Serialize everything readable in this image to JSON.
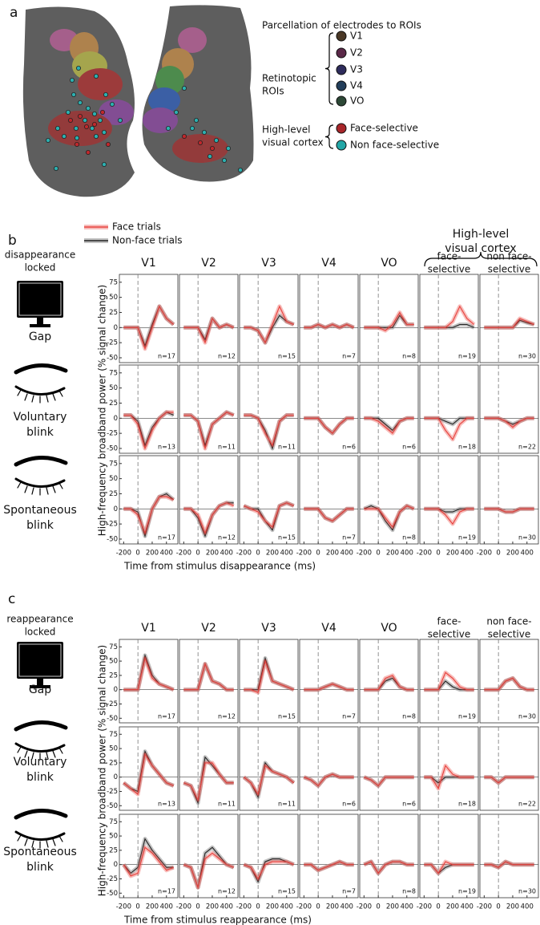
{
  "panel_a": {
    "label": "a",
    "legend_title": "Parcellation of electrodes to ROIs",
    "groups": [
      {
        "name": [
          "Retinotopic",
          "ROIs"
        ],
        "items": [
          {
            "name": "V1",
            "color": "#4a3826"
          },
          {
            "name": "V2",
            "color": "#5a2848"
          },
          {
            "name": "V3",
            "color": "#2e2c5c"
          },
          {
            "name": "V4",
            "color": "#223e5a"
          },
          {
            "name": "VO",
            "color": "#2c4836"
          }
        ]
      },
      {
        "name": [
          "High-level",
          "visual cortex"
        ],
        "items": [
          {
            "name": "Face-selective",
            "color": "#a8262a"
          },
          {
            "name": "Non face-selective",
            "color": "#22a6a6"
          }
        ]
      }
    ]
  },
  "axes": {
    "x": [
      -200,
      -100,
      0,
      100,
      200,
      300,
      400,
      500
    ],
    "xlim": [
      -260,
      560
    ],
    "ylim": [
      -58,
      88
    ],
    "xticks": [
      -200,
      0,
      200,
      400
    ],
    "yticks": [
      -50,
      -25,
      0,
      25,
      50,
      75
    ],
    "ylabel": "High-frequency broadband power (% signal change)"
  },
  "legend": [
    {
      "name": "Face trials",
      "color": "#e8413c"
    },
    {
      "name": "Non-face trials",
      "color": "#222222"
    }
  ],
  "panel_b": {
    "label": "b",
    "lock": [
      "disappearance",
      "locked"
    ],
    "group_header": [
      "High-level",
      "visual cortex"
    ],
    "columns": [
      [
        "V1"
      ],
      [
        "V2"
      ],
      [
        "V3"
      ],
      [
        "V4"
      ],
      [
        "VO"
      ],
      [
        "face-",
        "selective"
      ],
      [
        "non face-",
        "selective"
      ]
    ],
    "xlabel": "Time from stimulus disappearance (ms)",
    "rows": [
      {
        "name": [
          "Gap"
        ],
        "n": [
          "n=17",
          "n=12",
          "n=15",
          "n=7",
          "n=8",
          "n=19",
          "n=30"
        ],
        "face": [
          [
            0,
            0,
            0,
            -35,
            0,
            35,
            15,
            5
          ],
          [
            0,
            0,
            0,
            -25,
            15,
            0,
            5,
            0
          ],
          [
            0,
            0,
            -5,
            -25,
            5,
            35,
            10,
            5
          ],
          [
            0,
            0,
            5,
            0,
            5,
            0,
            5,
            0
          ],
          [
            0,
            0,
            0,
            -5,
            5,
            25,
            5,
            5
          ],
          [
            0,
            0,
            0,
            0,
            10,
            35,
            15,
            5
          ],
          [
            0,
            0,
            0,
            0,
            0,
            15,
            10,
            5
          ]
        ],
        "nonface": [
          [
            0,
            0,
            0,
            -30,
            5,
            35,
            15,
            5
          ],
          [
            0,
            0,
            0,
            -20,
            15,
            0,
            5,
            0
          ],
          [
            0,
            0,
            -5,
            -25,
            0,
            20,
            10,
            5
          ],
          [
            0,
            0,
            5,
            0,
            5,
            0,
            5,
            0
          ],
          [
            0,
            0,
            0,
            0,
            0,
            20,
            5,
            5
          ],
          [
            0,
            0,
            0,
            0,
            0,
            5,
            5,
            0
          ],
          [
            0,
            0,
            0,
            0,
            0,
            12,
            8,
            5
          ]
        ]
      },
      {
        "name": [
          "Voluntary",
          "blink"
        ],
        "n": [
          "n=13",
          "n=11",
          "n=11",
          "n=6",
          "n=6",
          "n=18",
          "n=22"
        ],
        "face": [
          [
            5,
            5,
            -10,
            -50,
            -20,
            0,
            10,
            10
          ],
          [
            5,
            5,
            -5,
            -50,
            -10,
            0,
            10,
            5
          ],
          [
            5,
            5,
            0,
            -25,
            -45,
            -5,
            5,
            5
          ],
          [
            0,
            0,
            0,
            -15,
            -25,
            -10,
            0,
            0
          ],
          [
            0,
            0,
            -5,
            -15,
            -25,
            -5,
            0,
            0
          ],
          [
            0,
            0,
            0,
            -20,
            -35,
            -10,
            0,
            0
          ],
          [
            0,
            0,
            0,
            -5,
            -15,
            -5,
            0,
            0
          ]
        ],
        "nonface": [
          [
            5,
            5,
            -5,
            -45,
            -15,
            0,
            10,
            5
          ],
          [
            5,
            5,
            -5,
            -45,
            -10,
            0,
            10,
            5
          ],
          [
            5,
            5,
            0,
            -20,
            -50,
            -5,
            5,
            5
          ],
          [
            0,
            0,
            0,
            -15,
            -25,
            -10,
            0,
            0
          ],
          [
            0,
            0,
            0,
            -10,
            -20,
            -5,
            0,
            0
          ],
          [
            0,
            0,
            0,
            -5,
            -10,
            0,
            0,
            0
          ],
          [
            0,
            0,
            0,
            -5,
            -10,
            -5,
            0,
            0
          ]
        ]
      },
      {
        "name": [
          "Spontaneous",
          "blink"
        ],
        "n": [
          "n=17",
          "n=12",
          "n=15",
          "n=7",
          "n=8",
          "n=19",
          "n=30"
        ],
        "face": [
          [
            0,
            0,
            -10,
            -40,
            0,
            20,
            20,
            15
          ],
          [
            0,
            0,
            -10,
            -40,
            -10,
            5,
            10,
            5
          ],
          [
            5,
            0,
            -5,
            -20,
            -30,
            5,
            10,
            5
          ],
          [
            0,
            0,
            0,
            -15,
            -20,
            -10,
            0,
            0
          ],
          [
            0,
            0,
            0,
            -15,
            -30,
            -5,
            5,
            0
          ],
          [
            0,
            0,
            0,
            -10,
            -25,
            -5,
            0,
            0
          ],
          [
            0,
            0,
            0,
            -5,
            -5,
            0,
            0,
            0
          ]
        ],
        "nonface": [
          [
            0,
            0,
            -5,
            -45,
            0,
            20,
            25,
            15
          ],
          [
            0,
            0,
            -15,
            -45,
            -10,
            5,
            10,
            10
          ],
          [
            5,
            0,
            0,
            -20,
            -35,
            5,
            10,
            5
          ],
          [
            0,
            0,
            0,
            -15,
            -20,
            -10,
            0,
            0
          ],
          [
            0,
            5,
            0,
            -20,
            -35,
            -5,
            5,
            0
          ],
          [
            0,
            0,
            0,
            -5,
            -5,
            0,
            0,
            0
          ],
          [
            0,
            0,
            0,
            -5,
            -5,
            0,
            0,
            0
          ]
        ]
      }
    ]
  },
  "panel_c": {
    "label": "c",
    "lock": [
      "reappearance",
      "locked"
    ],
    "columns": [
      [
        "V1"
      ],
      [
        "V2"
      ],
      [
        "V3"
      ],
      [
        "V4"
      ],
      [
        "VO"
      ],
      [
        "face-",
        "selective"
      ],
      [
        "non face-",
        "selective"
      ]
    ],
    "xlabel": "Time from stimulus reappearance (ms)",
    "rows": [
      {
        "name": [
          "Gap"
        ],
        "n": [
          "n=17",
          "n=12",
          "n=15",
          "n=7",
          "n=8",
          "n=19",
          "n=30"
        ],
        "face": [
          [
            0,
            0,
            0,
            55,
            20,
            10,
            5,
            0
          ],
          [
            0,
            0,
            0,
            45,
            15,
            10,
            0,
            0
          ],
          [
            0,
            0,
            -5,
            50,
            15,
            10,
            5,
            0
          ],
          [
            0,
            0,
            0,
            5,
            10,
            5,
            0,
            0
          ],
          [
            0,
            0,
            0,
            20,
            25,
            5,
            0,
            0
          ],
          [
            0,
            0,
            0,
            30,
            20,
            5,
            0,
            0
          ],
          [
            0,
            0,
            0,
            15,
            20,
            5,
            0,
            0
          ]
        ],
        "nonface": [
          [
            0,
            0,
            0,
            60,
            25,
            10,
            5,
            0
          ],
          [
            0,
            0,
            0,
            45,
            15,
            10,
            0,
            0
          ],
          [
            0,
            0,
            0,
            55,
            15,
            10,
            5,
            0
          ],
          [
            0,
            0,
            0,
            5,
            10,
            5,
            0,
            0
          ],
          [
            0,
            0,
            0,
            15,
            20,
            5,
            0,
            0
          ],
          [
            0,
            0,
            0,
            15,
            5,
            0,
            0,
            0
          ],
          [
            0,
            0,
            0,
            15,
            20,
            5,
            0,
            0
          ]
        ]
      },
      {
        "name": [
          "Voluntary",
          "blink"
        ],
        "n": [
          "n=13",
          "n=11",
          "n=11",
          "n=6",
          "n=6",
          "n=18",
          "n=22"
        ],
        "face": [
          [
            -10,
            -20,
            -30,
            40,
            20,
            5,
            -10,
            -15
          ],
          [
            -10,
            -15,
            -40,
            25,
            25,
            5,
            -10,
            -10
          ],
          [
            0,
            -10,
            -30,
            20,
            10,
            5,
            0,
            -10
          ],
          [
            0,
            -5,
            -15,
            0,
            5,
            0,
            0,
            0
          ],
          [
            0,
            -5,
            -15,
            0,
            0,
            0,
            0,
            0
          ],
          [
            0,
            0,
            -20,
            20,
            5,
            0,
            0,
            0
          ],
          [
            0,
            0,
            -10,
            0,
            0,
            0,
            0,
            0
          ]
        ],
        "nonface": [
          [
            -10,
            -20,
            -25,
            45,
            20,
            5,
            -10,
            -15
          ],
          [
            -10,
            -15,
            -45,
            35,
            20,
            5,
            -10,
            -10
          ],
          [
            0,
            -10,
            -35,
            25,
            10,
            5,
            0,
            -10
          ],
          [
            0,
            -5,
            -15,
            0,
            5,
            0,
            0,
            0
          ],
          [
            0,
            -5,
            -15,
            0,
            0,
            0,
            0,
            0
          ],
          [
            0,
            0,
            -10,
            0,
            0,
            0,
            0,
            0
          ],
          [
            0,
            0,
            -10,
            0,
            0,
            0,
            0,
            0
          ]
        ]
      },
      {
        "name": [
          "Spontaneous",
          "blink"
        ],
        "n": [
          "n=17",
          "n=12",
          "n=15",
          "n=7",
          "n=8",
          "n=19",
          "n=30"
        ],
        "face": [
          [
            0,
            -20,
            -15,
            30,
            20,
            5,
            -10,
            -5
          ],
          [
            0,
            -5,
            -40,
            10,
            20,
            10,
            0,
            -5
          ],
          [
            0,
            -5,
            -25,
            0,
            5,
            5,
            5,
            0
          ],
          [
            0,
            0,
            -10,
            -5,
            0,
            5,
            0,
            0
          ],
          [
            0,
            5,
            -15,
            0,
            5,
            5,
            0,
            0
          ],
          [
            0,
            0,
            -15,
            5,
            0,
            0,
            0,
            0
          ],
          [
            0,
            0,
            -5,
            5,
            0,
            0,
            0,
            0
          ]
        ],
        "nonface": [
          [
            0,
            -15,
            -5,
            45,
            25,
            10,
            -5,
            -5
          ],
          [
            0,
            -5,
            -40,
            20,
            30,
            15,
            0,
            -5
          ],
          [
            0,
            -5,
            -30,
            5,
            10,
            10,
            5,
            0
          ],
          [
            0,
            0,
            -10,
            -5,
            0,
            5,
            0,
            0
          ],
          [
            0,
            5,
            -15,
            0,
            5,
            5,
            0,
            0
          ],
          [
            0,
            0,
            -15,
            -5,
            0,
            0,
            0,
            0
          ],
          [
            0,
            0,
            -5,
            5,
            0,
            0,
            0,
            0
          ]
        ]
      }
    ]
  }
}
